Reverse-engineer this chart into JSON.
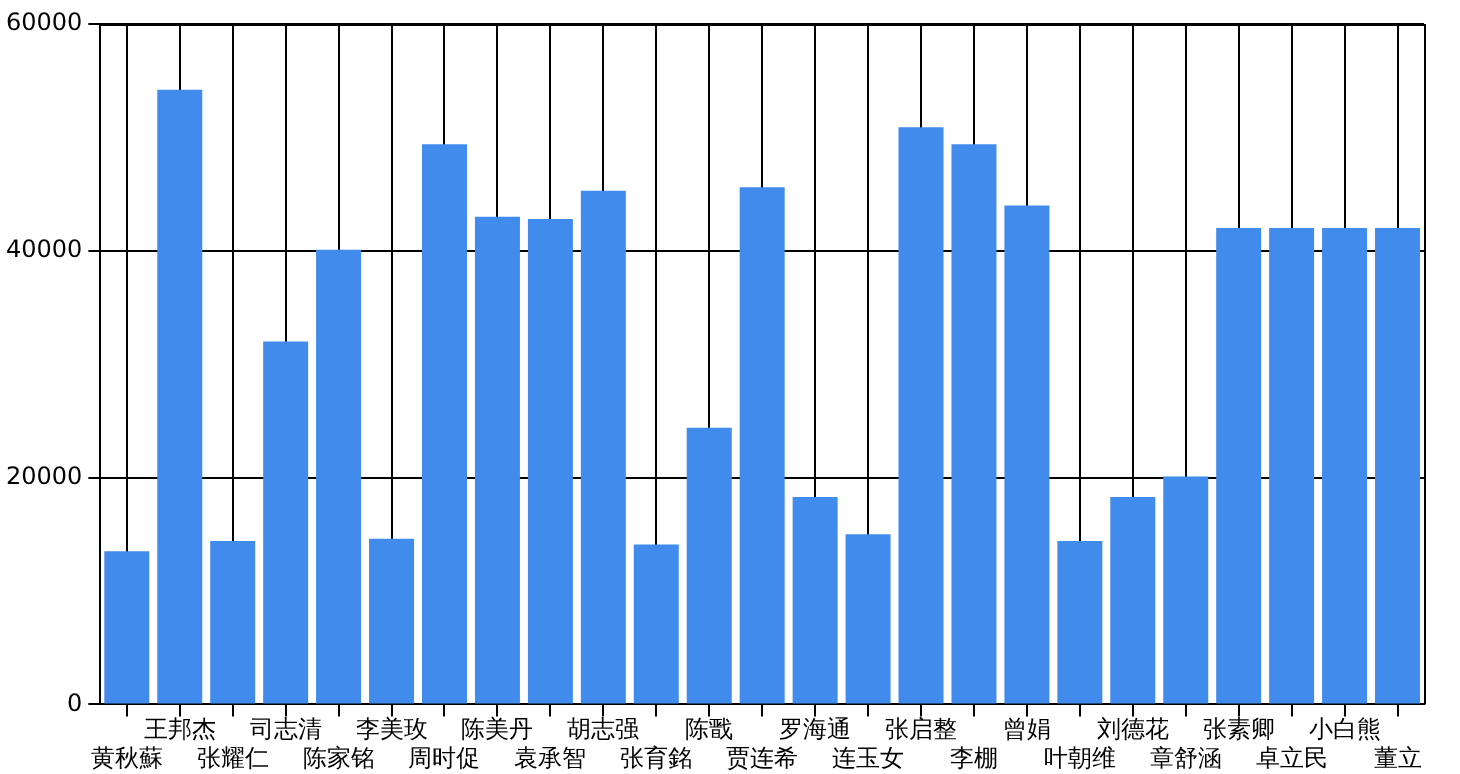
{
  "chart_data": {
    "type": "bar",
    "categories": [
      "黄秋蘇",
      "王邦杰",
      "张耀仁",
      "司志清",
      "陈家铭",
      "李美玫",
      "周时促",
      "陈美丹",
      "袁承智",
      "胡志强",
      "张育銘",
      "陈戬",
      "贾连希",
      "罗海通",
      "连玉女",
      "张启整",
      "李棚",
      "曾娟",
      "叶朝维",
      "刘德花",
      "章舒涵",
      "张素卿",
      "卓立民",
      "小白熊",
      "董立"
    ],
    "values": [
      13500,
      54200,
      14400,
      32000,
      40100,
      14600,
      49400,
      43000,
      42800,
      45300,
      14100,
      24400,
      45600,
      18300,
      15000,
      50900,
      49400,
      44000,
      14400,
      18300,
      20100,
      42000,
      42000,
      42000,
      42000
    ],
    "color": "#418bed",
    "ylim": [
      0,
      60000
    ],
    "yticks": [
      0,
      20000,
      40000,
      60000
    ],
    "grid": true,
    "legend": false
  }
}
